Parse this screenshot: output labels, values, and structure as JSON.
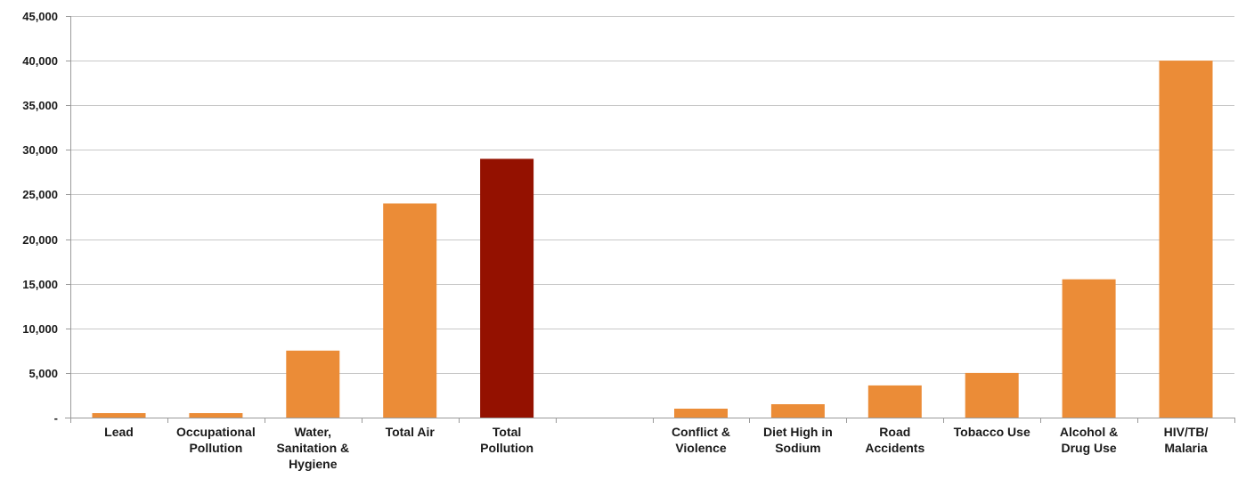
{
  "chart_data": {
    "type": "bar",
    "title": "",
    "xlabel": "",
    "ylabel": "",
    "ylim": [
      0,
      45000
    ],
    "grid": true,
    "y_ticks": [
      {
        "value": 0,
        "label": "-"
      },
      {
        "value": 5000,
        "label": "5,000"
      },
      {
        "value": 10000,
        "label": "10,000"
      },
      {
        "value": 15000,
        "label": "15,000"
      },
      {
        "value": 20000,
        "label": "20,000"
      },
      {
        "value": 25000,
        "label": "25,000"
      },
      {
        "value": 30000,
        "label": "30,000"
      },
      {
        "value": 35000,
        "label": "35,000"
      },
      {
        "value": 40000,
        "label": "40,000"
      },
      {
        "value": 45000,
        "label": "45,000"
      }
    ],
    "categories": [
      {
        "lines": [
          "Lead"
        ]
      },
      {
        "lines": [
          "Occupational",
          "Pollution"
        ]
      },
      {
        "lines": [
          "Water,",
          "Sanitation &",
          "Hygiene"
        ]
      },
      {
        "lines": [
          "Total Air"
        ]
      },
      {
        "lines": [
          "Total",
          "Pollution"
        ]
      },
      {
        "lines": [
          ""
        ]
      },
      {
        "lines": [
          "Conflict &",
          "Violence"
        ]
      },
      {
        "lines": [
          "Diet High in",
          "Sodium"
        ]
      },
      {
        "lines": [
          "Road",
          "Accidents"
        ]
      },
      {
        "lines": [
          "Tobacco Use"
        ]
      },
      {
        "lines": [
          "Alcohol &",
          "Drug Use"
        ]
      },
      {
        "lines": [
          "HIV/TB/",
          "Malaria"
        ]
      }
    ],
    "values": [
      500,
      500,
      7500,
      24000,
      29000,
      null,
      1000,
      1500,
      3600,
      5000,
      15500,
      40000
    ],
    "colors": {
      "default": "#EB8C37",
      "highlight": "#941100",
      "highlight_index": 4
    }
  }
}
